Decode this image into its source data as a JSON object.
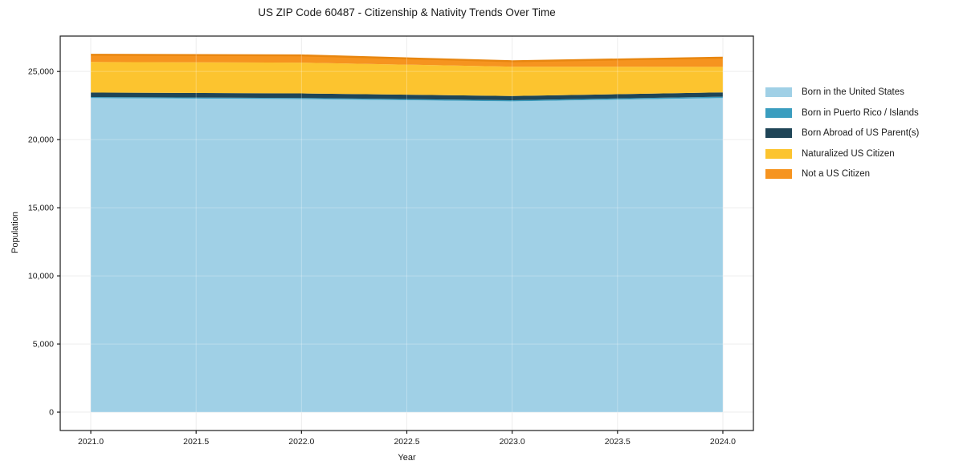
{
  "chart_data": {
    "type": "area",
    "stacked": true,
    "title": "US ZIP Code 60487 - Citizenship & Nativity Trends Over Time",
    "xlabel": "Year",
    "ylabel": "Population",
    "x": [
      2021,
      2022,
      2023,
      2024
    ],
    "series": [
      {
        "name": "Born in the United States",
        "color": "#a0d0e6",
        "values": [
          23050,
          22980,
          22810,
          23060
        ]
      },
      {
        "name": "Born in Puerto Rico / Islands",
        "color": "#3a9dbf",
        "values": [
          80,
          80,
          80,
          90
        ]
      },
      {
        "name": "Born Abroad of US Parent(s)",
        "color": "#1f4557",
        "values": [
          330,
          330,
          310,
          320
        ]
      },
      {
        "name": "Naturalized US Citizen",
        "color": "#fcc42f",
        "values": [
          2240,
          2260,
          2150,
          1870
        ]
      },
      {
        "name": "Not a US Citizen",
        "color": "#f6941f",
        "values": [
          530,
          530,
          400,
          680
        ]
      }
    ],
    "totals": [
      26230,
      26180,
      25750,
      26020
    ],
    "top_edge_color": "#e8860f",
    "x_ticks": [
      2021.0,
      2021.5,
      2022.0,
      2022.5,
      2023.0,
      2023.5,
      2024.0
    ],
    "x_tick_labels": [
      "2021.0",
      "2021.5",
      "2022.0",
      "2022.5",
      "2023.0",
      "2023.5",
      "2024.0"
    ],
    "y_ticks": [
      0,
      5000,
      10000,
      15000,
      20000,
      25000
    ],
    "y_tick_labels": [
      "0",
      "5,000",
      "10,000",
      "15,000",
      "20,000",
      "25,000"
    ],
    "xlim": [
      2020.855,
      2024.145
    ],
    "ylim": [
      -1350,
      27600
    ],
    "grid": true,
    "legend_position": "right",
    "grid_color": "#e8e8e8",
    "spine_color": "#1a1a1a"
  }
}
